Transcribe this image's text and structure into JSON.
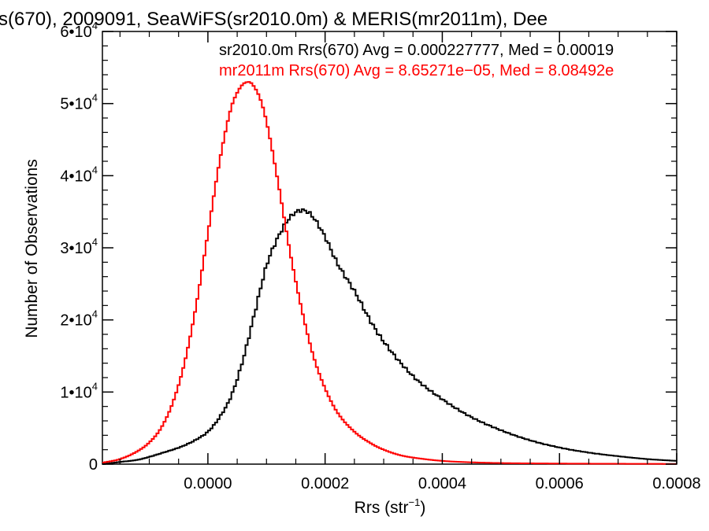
{
  "chart_data": {
    "type": "line",
    "step": true,
    "title": "s(670), 2009091, SeaWiFS(sr2010.0m) & MERIS(mr2011m), Dee",
    "xlabel_main": "Rrs (str",
    "xlabel_exp": "−1",
    "xlabel_close": ")",
    "ylabel": "Number of Observations",
    "xlim": [
      -0.00018,
      0.0008
    ],
    "ylim": [
      0,
      60000
    ],
    "x_ticks": [
      {
        "value": 0.0,
        "label": "0.0000"
      },
      {
        "value": 0.0002,
        "label": "0.0002"
      },
      {
        "value": 0.0004,
        "label": "0.0004"
      },
      {
        "value": 0.0006,
        "label": "0.0006"
      },
      {
        "value": 0.0008,
        "label": "0.0008"
      }
    ],
    "y_ticks": [
      {
        "value": 0,
        "mant": "0",
        "exp": ""
      },
      {
        "value": 10000,
        "mant": "1•10",
        "exp": "4"
      },
      {
        "value": 20000,
        "mant": "2•10",
        "exp": "4"
      },
      {
        "value": 30000,
        "mant": "3•10",
        "exp": "4"
      },
      {
        "value": 40000,
        "mant": "4•10",
        "exp": "4"
      },
      {
        "value": 50000,
        "mant": "5•10",
        "exp": "4"
      },
      {
        "value": 60000,
        "mant": "6•10",
        "exp": "4"
      }
    ],
    "grid": false,
    "legend_position": "top-right",
    "series": [
      {
        "name": "sr2010.0m Rrs(670) Avg = 0.000227777, Med = 0.00019",
        "color": "#000000",
        "x": [
          -0.00018,
          -0.00015,
          -0.00012,
          -0.0001,
          -8e-05,
          -6e-05,
          -4e-05,
          -2e-05,
          0.0,
          2e-05,
          4e-05,
          6e-05,
          8e-05,
          0.0001,
          0.00012,
          0.00014,
          0.00016,
          0.00017,
          0.00018,
          0.0002,
          0.00022,
          0.00025,
          0.00028,
          0.0003,
          0.00035,
          0.0004,
          0.00045,
          0.0005,
          0.00055,
          0.0006,
          0.00065,
          0.0007,
          0.00075,
          0.0008
        ],
        "y": [
          0,
          300,
          600,
          1000,
          1500,
          2000,
          2600,
          3400,
          4500,
          6500,
          9500,
          14500,
          21000,
          27500,
          31500,
          34200,
          35200,
          35000,
          34200,
          31500,
          28000,
          24000,
          19500,
          17000,
          12200,
          9000,
          6500,
          4700,
          3300,
          2300,
          1600,
          1100,
          700,
          450
        ]
      },
      {
        "name": "mr2011m Rrs(670) Avg = 8.65271e−05, Med = 8.08492e",
        "color": "#ff0000",
        "x": [
          -0.00018,
          -0.00015,
          -0.00012,
          -0.0001,
          -8e-05,
          -6e-05,
          -4e-05,
          -2e-05,
          0.0,
          2e-05,
          4e-05,
          5e-05,
          6e-05,
          7e-05,
          8e-05,
          9e-05,
          0.0001,
          0.00012,
          0.00014,
          0.00016,
          0.00018,
          0.0002,
          0.00022,
          0.00025,
          0.00028,
          0.0003,
          0.00033,
          0.00036,
          0.0004,
          0.00045,
          0.0005,
          0.0006,
          0.0007,
          0.0008
        ],
        "y": [
          200,
          700,
          1800,
          3000,
          5000,
          8500,
          14000,
          22000,
          32000,
          42000,
          49500,
          51500,
          52700,
          53000,
          52200,
          50500,
          47500,
          39000,
          29500,
          21500,
          15000,
          10500,
          7300,
          4500,
          2800,
          2000,
          1200,
          800,
          450,
          250,
          150,
          80,
          50,
          30
        ]
      }
    ]
  }
}
